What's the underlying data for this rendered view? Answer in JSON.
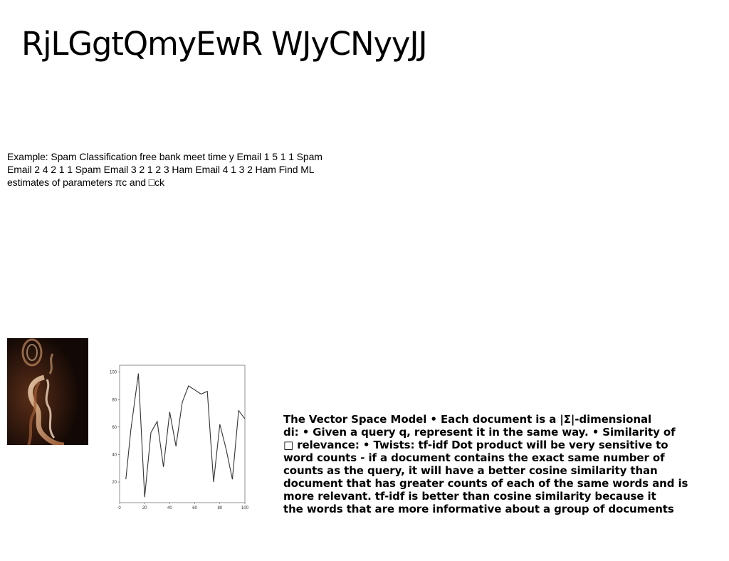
{
  "title": "RjLGgtQmyEwR WJyCNyyJJ",
  "example_text": "Example: Spam Classification free bank meet time y Email 1 5 1 1 Spam Email 2 4 2 1 1 Spam Email 3 2 1 2 3 Ham Email 4 1 3 2 Ham Find ML estimates of parameters πc and □ck",
  "vector_space_text": "The Vector Space Model • Each document is a |Σ|-dimensional\ndi: • Given a query q, represent it in the same way. • Similarity of\n□ relevance: • Twists:  tf-idf Dot product will be very sensitive to\nword counts - if a document contains the exact same number of\ncounts as the query, it will have a better cosine similarity than\ndocument that has greater counts of each of the same words and is\nmore relevant. tf-idf is better than cosine similarity because it\nthe words that are more informative about a group of documents",
  "photo": {
    "icon": "smoke-photo-icon",
    "colors": [
      "#160a06",
      "#c98a5a",
      "#f2d2b0"
    ]
  },
  "chart_data": {
    "type": "line",
    "title": "",
    "xlabel": "",
    "ylabel": "",
    "xlim": [
      0,
      100
    ],
    "ylim": [
      5,
      105
    ],
    "xticks": [
      "0",
      "20",
      "40",
      "60",
      "80",
      "100"
    ],
    "yticks": [
      "20",
      "40",
      "60",
      "80",
      "100"
    ],
    "series": [
      {
        "color": "#333333",
        "x": [
          5,
          9,
          15,
          20,
          25,
          30,
          35,
          40,
          45,
          50,
          55,
          60,
          65,
          70,
          75,
          80,
          85,
          90,
          95,
          100
        ],
        "y": [
          22,
          58,
          99,
          9,
          56,
          64,
          31,
          71,
          46,
          78,
          90,
          87,
          84,
          86,
          20,
          62,
          44,
          22,
          72,
          66
        ]
      }
    ]
  }
}
